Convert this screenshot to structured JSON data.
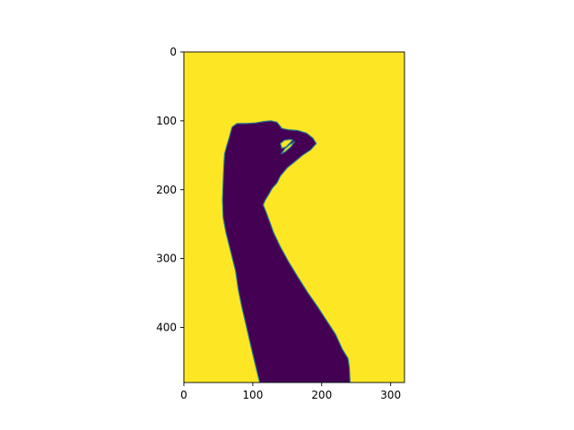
{
  "chart_data": {
    "type": "heatmap",
    "title": "",
    "xlabel": "",
    "ylabel": "",
    "xlim": [
      0,
      320
    ],
    "ylim": [
      480,
      0
    ],
    "x_ticks": [
      0,
      100,
      200,
      300
    ],
    "y_ticks": [
      0,
      100,
      200,
      300,
      400
    ],
    "x_tick_labels": [
      "0",
      "100",
      "200",
      "300"
    ],
    "y_tick_labels": [
      "0",
      "100",
      "200",
      "300",
      "400"
    ],
    "colormap": "viridis",
    "colors": {
      "background_value": "#fde725",
      "mask_value": "#440154",
      "edge": "#2a788e"
    },
    "legend": "none",
    "grid": false,
    "mask_outline": [
      [
        62,
        137
      ],
      [
        66,
        124
      ],
      [
        70,
        109
      ],
      [
        77,
        104
      ],
      [
        90,
        104
      ],
      [
        104,
        103
      ],
      [
        116,
        101
      ],
      [
        126,
        100
      ],
      [
        135,
        102
      ],
      [
        142,
        111
      ],
      [
        152,
        113
      ],
      [
        165,
        114
      ],
      [
        178,
        118
      ],
      [
        187,
        125
      ],
      [
        192,
        133
      ],
      [
        184,
        142
      ],
      [
        172,
        150
      ],
      [
        160,
        160
      ],
      [
        150,
        168
      ],
      [
        140,
        180
      ],
      [
        135,
        190
      ],
      [
        128,
        198
      ],
      [
        123,
        207
      ],
      [
        118,
        215
      ],
      [
        115,
        222
      ],
      [
        119,
        232
      ],
      [
        125,
        248
      ],
      [
        130,
        262
      ],
      [
        140,
        283
      ],
      [
        152,
        305
      ],
      [
        166,
        328
      ],
      [
        180,
        350
      ],
      [
        194,
        370
      ],
      [
        207,
        390
      ],
      [
        220,
        410
      ],
      [
        230,
        432
      ],
      [
        238,
        445
      ],
      [
        240,
        458
      ],
      [
        241,
        480
      ],
      [
        110,
        480
      ],
      [
        104,
        455
      ],
      [
        98,
        430
      ],
      [
        91,
        400
      ],
      [
        84,
        370
      ],
      [
        79,
        345
      ],
      [
        75,
        318
      ],
      [
        68,
        290
      ],
      [
        61,
        262
      ],
      [
        57,
        240
      ],
      [
        56,
        215
      ],
      [
        57,
        190
      ],
      [
        58,
        165
      ],
      [
        59,
        148
      ]
    ],
    "mask_hole": [
      [
        141,
        148
      ],
      [
        147,
        140
      ],
      [
        153,
        135
      ],
      [
        161,
        130
      ],
      [
        155,
        138
      ],
      [
        147,
        145
      ]
    ],
    "mask_hole_2": [
      [
        140,
        133
      ],
      [
        146,
        128
      ],
      [
        154,
        127
      ],
      [
        158,
        128
      ],
      [
        148,
        138
      ],
      [
        142,
        140
      ]
    ]
  }
}
